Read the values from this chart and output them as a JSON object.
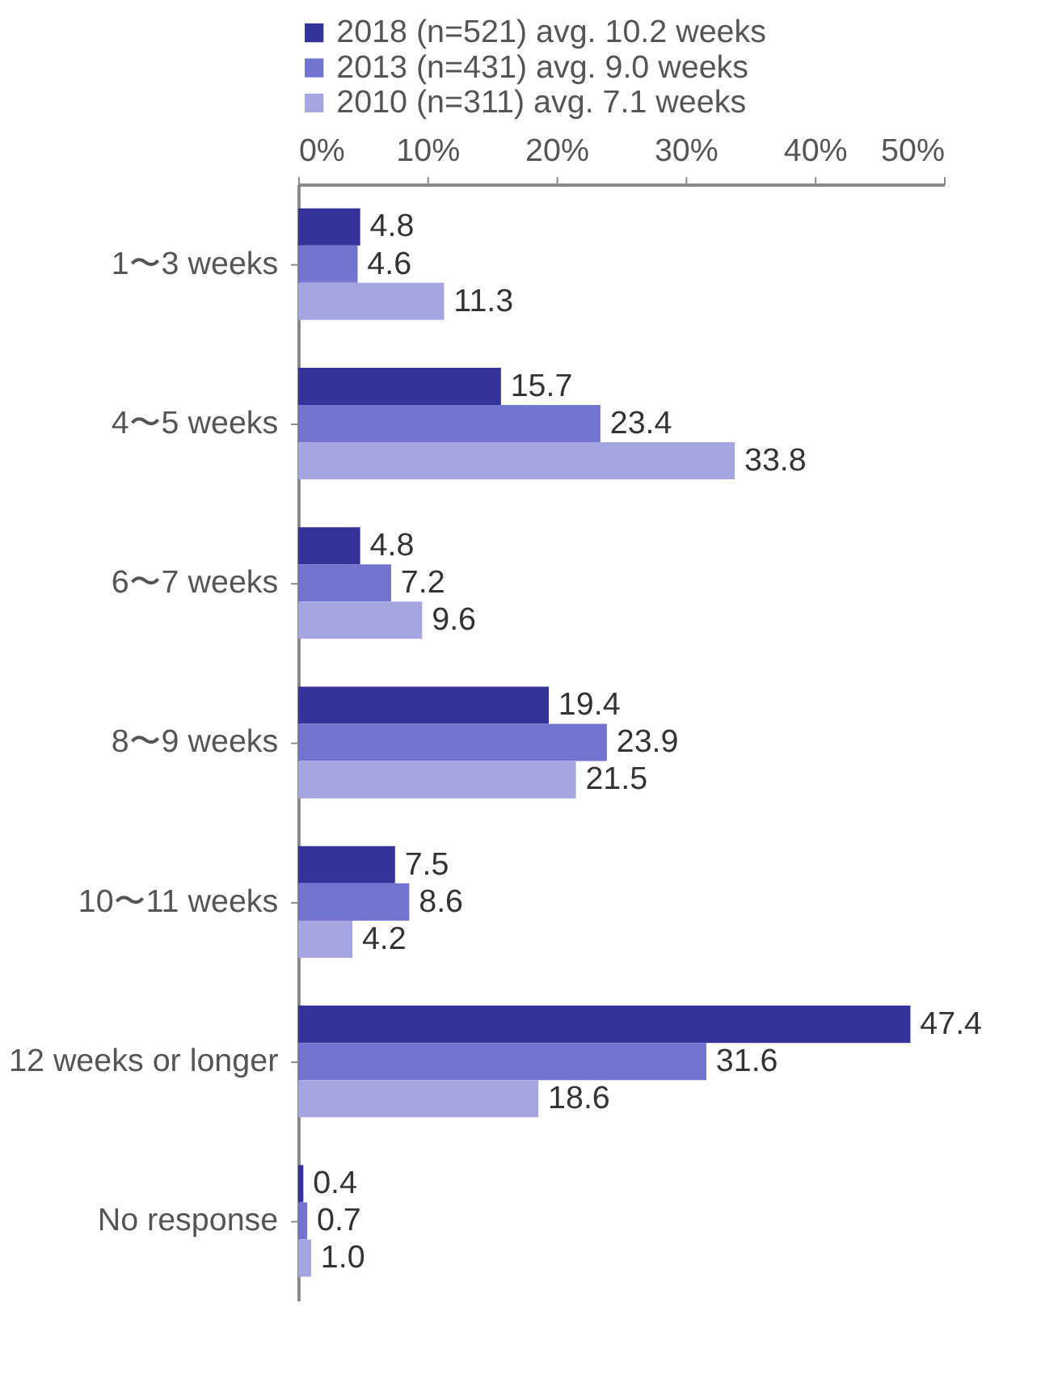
{
  "chart_data": {
    "type": "bar",
    "orientation": "horizontal",
    "categories": [
      "1〜3 weeks",
      "4〜5 weeks",
      "6〜7 weeks",
      "8〜9 weeks",
      "10〜11 weeks",
      "12 weeks or longer",
      "No response"
    ],
    "series": [
      {
        "name": "2018  (n=521)  avg. 10.2 weeks",
        "color": "#333399",
        "values": [
          4.8,
          15.7,
          4.8,
          19.4,
          7.5,
          47.4,
          0.4
        ]
      },
      {
        "name": "2013 (n=431)  avg. 9.0 weeks",
        "color": "#7373d0",
        "values": [
          4.6,
          23.4,
          7.2,
          23.9,
          8.6,
          31.6,
          0.7
        ]
      },
      {
        "name": "2010 (n=311)  avg. 7.1 weeks",
        "color": "#a5a5e0",
        "values": [
          11.3,
          33.8,
          9.6,
          21.5,
          4.2,
          18.6,
          1.0
        ]
      }
    ],
    "xlim": [
      0,
      50
    ],
    "xticks": [
      {
        "value": 0,
        "label": "0%"
      },
      {
        "value": 10,
        "label": "10%"
      },
      {
        "value": 20,
        "label": "20%"
      },
      {
        "value": 30,
        "label": "30%"
      },
      {
        "value": 40,
        "label": "40%"
      },
      {
        "value": 50,
        "label": "50%"
      }
    ],
    "value_labels": [
      [
        "4.8",
        "15.7",
        "4.8",
        "19.4",
        "7.5",
        "47.4",
        "0.4"
      ],
      [
        "4.6",
        "23.4",
        "7.2",
        "23.9",
        "8.6",
        "31.6",
        "0.7"
      ],
      [
        "11.3",
        "33.8",
        "9.6",
        "21.5",
        "4.2",
        "18.6",
        "1.0"
      ]
    ],
    "legend": "top",
    "grid": false
  }
}
